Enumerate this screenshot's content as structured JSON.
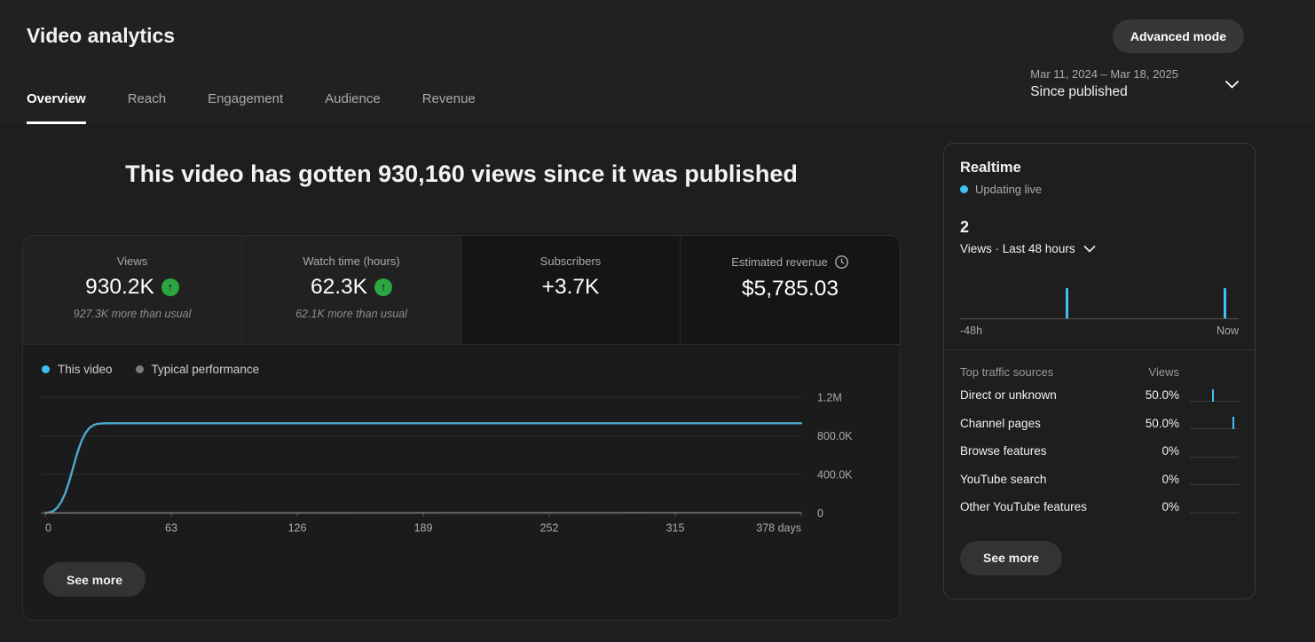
{
  "header": {
    "title": "Video analytics",
    "advanced_mode_label": "Advanced mode",
    "date_range": "Mar 11, 2024 – Mar 18, 2025",
    "date_preset": "Since published",
    "tabs": [
      {
        "label": "Overview",
        "active": true
      },
      {
        "label": "Reach",
        "active": false
      },
      {
        "label": "Engagement",
        "active": false
      },
      {
        "label": "Audience",
        "active": false
      },
      {
        "label": "Revenue",
        "active": false
      }
    ]
  },
  "headline": "This video has gotten 930,160 views since it was published",
  "metrics": {
    "cards": [
      {
        "label": "Views",
        "value": "930.2K",
        "trend": "up",
        "note": "927.3K more than usual",
        "style": "hl"
      },
      {
        "label": "Watch time (hours)",
        "value": "62.3K",
        "trend": "up",
        "note": "62.1K more than usual",
        "style": "hl"
      },
      {
        "label": "Subscribers",
        "value": "+3.7K",
        "trend": null,
        "note": "",
        "style": "dim"
      },
      {
        "label": "Estimated revenue",
        "value": "$5,785.03",
        "trend": null,
        "note": "",
        "icon": "clock",
        "style": "dim"
      }
    ]
  },
  "legend": [
    {
      "label": "This video",
      "color": "#3fc1f2"
    },
    {
      "label": "Typical performance",
      "color": "#7a7a7a"
    }
  ],
  "main_card": {
    "see_more_label": "See more"
  },
  "chart_data": {
    "type": "line",
    "title": "Cumulative views since published",
    "xlabel": "days",
    "ylabel": "Views",
    "xlim": [
      0,
      378
    ],
    "ylim": [
      0,
      1200000
    ],
    "x_ticks": [
      0,
      63,
      126,
      189,
      252,
      315,
      378
    ],
    "x_tick_labels": [
      "0",
      "63",
      "126",
      "189",
      "252",
      "315",
      "378 days"
    ],
    "y_ticks": [
      0,
      400000,
      800000,
      1200000
    ],
    "y_tick_labels": [
      "0",
      "400.0K",
      "800.0K",
      "1.2M"
    ],
    "grid": true,
    "legend_position": "top-left",
    "series": [
      {
        "name": "This video",
        "color": "#4fagnore",
        "x": [
          0,
          2,
          4,
          6,
          8,
          10,
          12,
          14,
          16,
          18,
          20,
          22,
          24,
          26,
          28,
          30,
          36,
          378
        ],
        "y": [
          0,
          5000,
          20000,
          55000,
          115000,
          205000,
          330000,
          475000,
          620000,
          740000,
          825000,
          880000,
          910000,
          924000,
          928000,
          930000,
          930200,
          930200
        ]
      },
      {
        "name": "Typical performance",
        "color": "#7a7a7a",
        "x": [
          0,
          378
        ],
        "y": [
          0,
          2900
        ]
      }
    ]
  },
  "realtime": {
    "title": "Realtime",
    "status": "Updating live",
    "count": "2",
    "metric_label": "Views · Last 48 hours",
    "axis_left": "-48h",
    "axis_right": "Now",
    "bars": [
      {
        "pos": 0.38,
        "height_frac": 1
      },
      {
        "pos": 0.945,
        "height_frac": 1
      }
    ],
    "traffic": {
      "header_source": "Top traffic sources",
      "header_views": "Views",
      "rows": [
        {
          "source": "Direct or unknown",
          "views": "50.0%",
          "tick": 0.45
        },
        {
          "source": "Channel pages",
          "views": "50.0%",
          "tick": 0.88
        },
        {
          "source": "Browse features",
          "views": "0%",
          "tick": null
        },
        {
          "source": "YouTube search",
          "views": "0%",
          "tick": null
        },
        {
          "source": "Other YouTube features",
          "views": "0%",
          "tick": null
        }
      ]
    },
    "see_more_label": "See more"
  },
  "colors": {
    "accent_blue": "#3fc1f2",
    "line_blue": "#4fa9cd",
    "typical_gray": "#7a7a7a",
    "positive_green": "#2ba640",
    "grid_line": "#2d2d2d",
    "axis_line": "#5a5a5a",
    "text_secondary": "#aaaaaa"
  }
}
